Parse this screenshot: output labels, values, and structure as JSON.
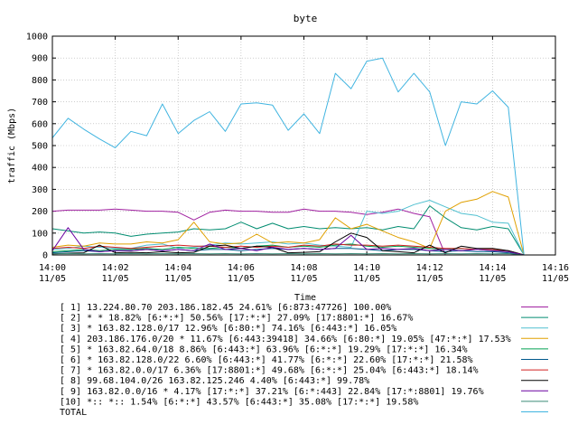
{
  "chart_data": {
    "type": "line",
    "title": "byte",
    "xlabel": "Time",
    "ylabel": "traffic (Mbps)",
    "ylim": [
      0,
      1000
    ],
    "yticks": [
      0,
      100,
      200,
      300,
      400,
      500,
      600,
      700,
      800,
      900,
      1000
    ],
    "xlim": [
      "14:00",
      "14:16"
    ],
    "xticks": [
      {
        "t": 0,
        "time": "14:00",
        "date": "11/05"
      },
      {
        "t": 2,
        "time": "14:02",
        "date": "11/05"
      },
      {
        "t": 4,
        "time": "14:04",
        "date": "11/05"
      },
      {
        "t": 6,
        "time": "14:06",
        "date": "11/05"
      },
      {
        "t": 8,
        "time": "14:08",
        "date": "11/05"
      },
      {
        "t": 10,
        "time": "14:10",
        "date": "11/05"
      },
      {
        "t": 12,
        "time": "14:12",
        "date": "11/05"
      },
      {
        "t": 14,
        "time": "14:14",
        "date": "11/05"
      },
      {
        "t": 16,
        "time": "14:16",
        "date": "11/05"
      }
    ],
    "grid": true,
    "legend_placement": "bottom",
    "x": [
      "14:00",
      "14:00:30",
      "14:01",
      "14:01:30",
      "14:02",
      "14:02:30",
      "14:03",
      "14:03:30",
      "14:04",
      "14:04:30",
      "14:05",
      "14:05:30",
      "14:06",
      "14:06:30",
      "14:07",
      "14:07:30",
      "14:08",
      "14:08:30",
      "14:09",
      "14:09:30",
      "14:10",
      "14:10:30",
      "14:11",
      "14:11:30",
      "14:12",
      "14:12:30",
      "14:13",
      "14:13:30",
      "14:14",
      "14:14:30",
      "14:15"
    ],
    "series": [
      {
        "name": "[ 1] 13.224.80.70 203.186.182.45 24.61% [6:873:47726] 100.00%",
        "color": "#a020a0",
        "values": [
          200,
          205,
          205,
          205,
          210,
          205,
          200,
          200,
          195,
          160,
          195,
          205,
          200,
          200,
          195,
          195,
          210,
          200,
          200,
          195,
          185,
          195,
          210,
          190,
          175,
          0,
          0,
          0,
          0,
          0,
          0
        ]
      },
      {
        "name": "[ 2] * * 18.82% [6:*:*] 50.56% [17:*:*] 27.09% [17:8801:*] 16.67%",
        "color": "#008c70",
        "values": [
          120,
          110,
          100,
          105,
          100,
          85,
          95,
          100,
          105,
          120,
          115,
          120,
          150,
          120,
          145,
          120,
          130,
          120,
          125,
          120,
          125,
          115,
          130,
          120,
          225,
          170,
          125,
          115,
          130,
          120,
          0
        ]
      },
      {
        "name": "[ 3] * 163.82.128.0/17 12.96% [6:80:*] 74.16% [6:443:*] 16.05%",
        "color": "#50c0d0",
        "values": [
          25,
          30,
          40,
          35,
          30,
          30,
          45,
          50,
          30,
          35,
          45,
          55,
          50,
          55,
          60,
          50,
          55,
          45,
          40,
          35,
          200,
          190,
          200,
          230,
          250,
          220,
          190,
          180,
          150,
          145,
          0
        ]
      },
      {
        "name": "[ 4] 203.186.176.0/20 * 11.67% [6:443:39418] 34.66% [6:80:*] 19.05% [47:*:*] 17.53%",
        "color": "#e0a000",
        "values": [
          35,
          45,
          40,
          55,
          50,
          50,
          60,
          55,
          70,
          150,
          60,
          50,
          55,
          95,
          55,
          60,
          55,
          70,
          170,
          120,
          140,
          110,
          80,
          60,
          30,
          200,
          240,
          255,
          290,
          265,
          0
        ]
      },
      {
        "name": "[ 5] * 163.82.64.0/18 8.86% [6:443:*] 63.96% [6:*:*] 19.29% [17:*:*] 16.34%",
        "color": "#00a050",
        "values": [
          15,
          20,
          25,
          20,
          25,
          25,
          30,
          25,
          35,
          30,
          30,
          35,
          30,
          40,
          45,
          35,
          40,
          35,
          45,
          50,
          40,
          35,
          40,
          35,
          30,
          25,
          30,
          25,
          20,
          20,
          0
        ]
      },
      {
        "name": "[ 6] * 163.82.128.0/22 6.60% [6:443:*] 41.77% [6:*:*] 22.60% [17:*:*] 21.58%",
        "color": "#00588c",
        "values": [
          10,
          15,
          20,
          15,
          20,
          20,
          25,
          20,
          25,
          20,
          25,
          25,
          20,
          25,
          30,
          25,
          30,
          25,
          30,
          30,
          25,
          20,
          25,
          25,
          20,
          15,
          20,
          15,
          15,
          10,
          0
        ]
      },
      {
        "name": "[ 7] * 163.82.0.0/17 6.36% [17:8801:*] 49.68% [6:*:*] 25.04% [6:443:*] 18.14%",
        "color": "#d02020",
        "values": [
          30,
          35,
          30,
          40,
          35,
          30,
          35,
          40,
          45,
          40,
          40,
          35,
          40,
          35,
          40,
          35,
          45,
          40,
          50,
          45,
          45,
          40,
          45,
          40,
          35,
          30,
          30,
          25,
          25,
          20,
          0
        ]
      },
      {
        "name": "[ 8] 99.68.104.0/26 163.82.125.246 4.40% [6:443:*] 99.78%",
        "color": "#000000",
        "values": [
          5,
          8,
          10,
          45,
          10,
          12,
          10,
          15,
          10,
          12,
          40,
          45,
          30,
          40,
          35,
          10,
          12,
          15,
          60,
          100,
          80,
          20,
          15,
          10,
          45,
          10,
          40,
          30,
          30,
          20,
          0
        ]
      },
      {
        "name": "[ 9] 163.82.0.0/16 * 4.17% [17:*:*] 37.21% [6:*:443] 22.84% [17:*:8801] 19.76%",
        "color": "#6a00a0",
        "values": [
          20,
          125,
          25,
          15,
          20,
          20,
          25,
          20,
          25,
          20,
          50,
          25,
          30,
          20,
          35,
          25,
          30,
          25,
          30,
          90,
          25,
          30,
          25,
          30,
          20,
          25,
          20,
          25,
          20,
          15,
          0
        ]
      },
      {
        "name": "[10] *:: *:: 1.54% [6:*:*] 43.57% [6:443:*] 35.08% [17:*:*] 19.58%",
        "color": "#3a8a78",
        "values": [
          5,
          6,
          5,
          6,
          5,
          6,
          5,
          6,
          5,
          6,
          5,
          6,
          5,
          6,
          5,
          6,
          5,
          6,
          5,
          6,
          5,
          6,
          5,
          6,
          5,
          6,
          5,
          6,
          5,
          6,
          0
        ]
      },
      {
        "name": "TOTAL",
        "color": "#40b4e0",
        "values": [
          535,
          625,
          575,
          530,
          490,
          565,
          545,
          690,
          555,
          615,
          655,
          565,
          690,
          695,
          685,
          570,
          645,
          555,
          830,
          760,
          885,
          900,
          745,
          830,
          745,
          500,
          700,
          690,
          750,
          675,
          0
        ]
      }
    ]
  }
}
